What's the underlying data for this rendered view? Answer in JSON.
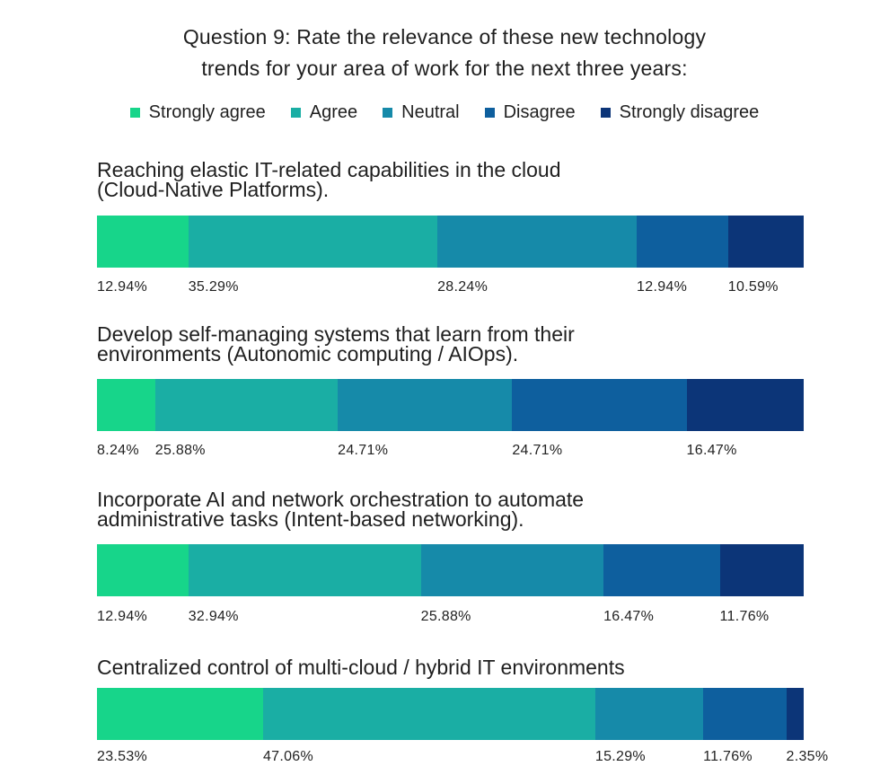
{
  "chart_data": {
    "type": "bar",
    "orientation": "horizontal-stacked-100",
    "title": "Question 9: Rate the relevance of these new technology trends for your area of work for the next three years:",
    "title_lines": [
      "Question 9: Rate the relevance of these new technology",
      "trends for your area of work for the next three years:"
    ],
    "legend_position": "top",
    "grid": false,
    "xlim": [
      0,
      100
    ],
    "series": [
      {
        "name": "Strongly agree",
        "color": "#17d58a"
      },
      {
        "name": "Agree",
        "color": "#1aaea4"
      },
      {
        "name": "Neutral",
        "color": "#168aa9"
      },
      {
        "name": "Disagree",
        "color": "#0e5f9e"
      },
      {
        "name": "Strongly disagree",
        "color": "#0c3578"
      }
    ],
    "categories": [
      {
        "label_lines": [
          "Reaching elastic IT-related capabilities in the cloud",
          "(Cloud-Native Platforms)."
        ],
        "values": [
          12.94,
          35.29,
          28.24,
          12.94,
          10.59
        ],
        "labels": [
          "12.94%",
          "35.29%",
          "28.24%",
          "12.94%",
          "10.59%"
        ]
      },
      {
        "label_lines": [
          "Develop self-managing systems that learn from their",
          "environments (Autonomic computing / AIOps)."
        ],
        "values": [
          8.24,
          25.88,
          24.71,
          24.71,
          16.47
        ],
        "labels": [
          "8.24%",
          "25.88%",
          "24.71%",
          "24.71%",
          "16.47%"
        ]
      },
      {
        "label_lines": [
          "Incorporate AI and network orchestration to automate",
          "administrative tasks (Intent-based networking)."
        ],
        "values": [
          12.94,
          32.94,
          25.88,
          16.47,
          11.76
        ],
        "labels": [
          "12.94%",
          "32.94%",
          "25.88%",
          "16.47%",
          "11.76%"
        ]
      },
      {
        "label_lines": [
          "Centralized control of multi-cloud / hybrid IT environments"
        ],
        "values": [
          23.53,
          47.06,
          15.29,
          11.76,
          2.35
        ],
        "labels": [
          "23.53%",
          "47.06%",
          "15.29%",
          "11.76%",
          "2.35%"
        ]
      }
    ]
  }
}
